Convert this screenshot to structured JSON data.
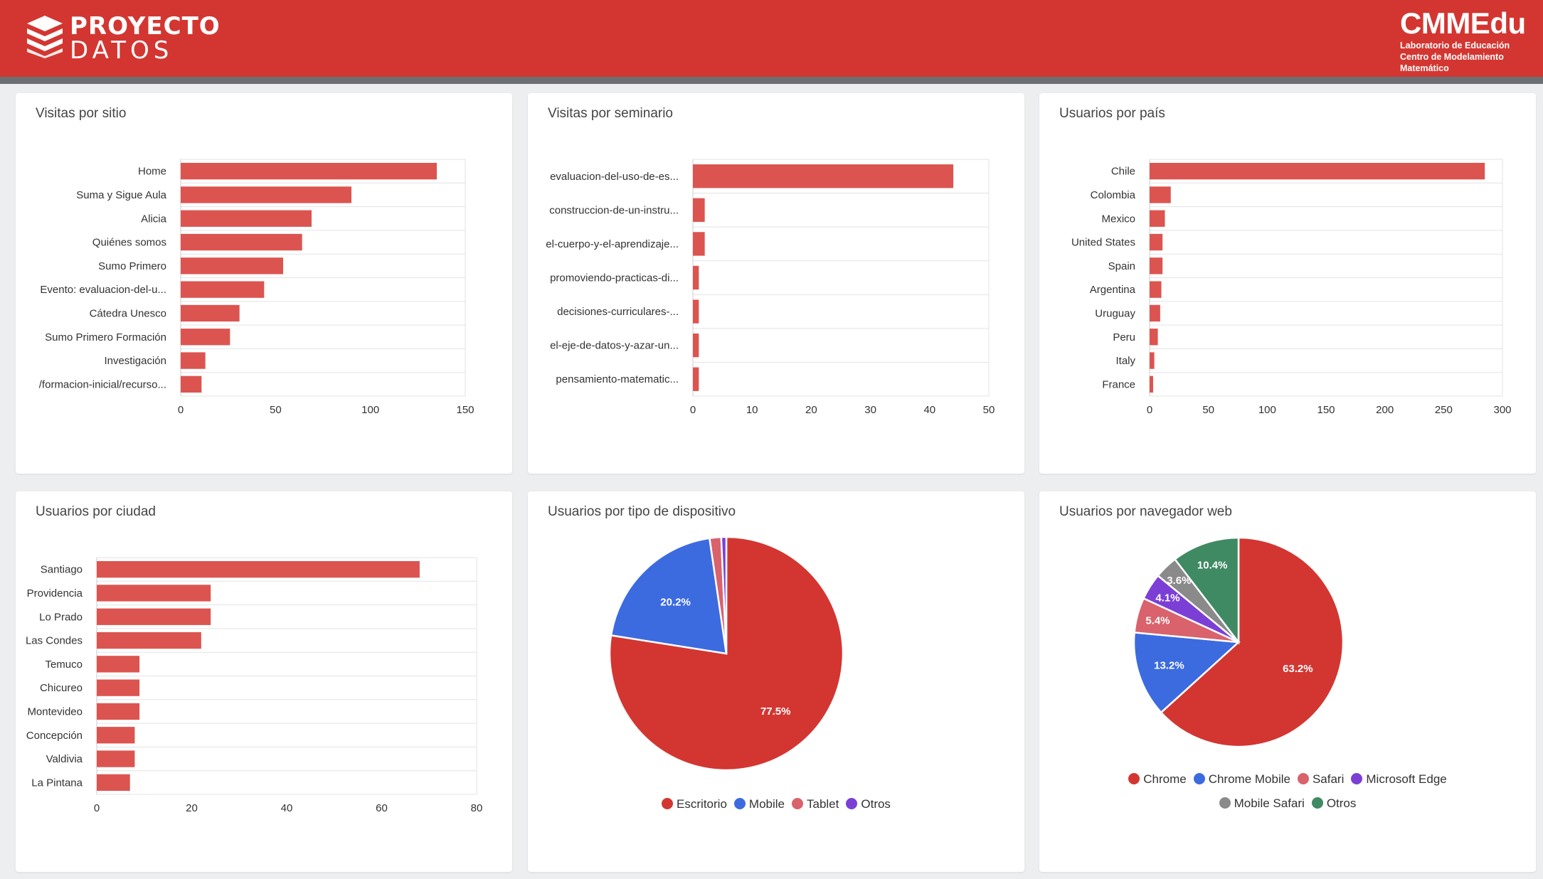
{
  "header": {
    "logo_line1": "PROYECTO",
    "logo_line2": "DATOS",
    "brand": "CMMEdu",
    "brand_sub": [
      "Laboratorio de Educación",
      "Centro de Modelamiento",
      "Matemático"
    ]
  },
  "colors": {
    "bar": "#dc5450",
    "header": "#d33631",
    "chrome": "#d33631",
    "blue": "#3c6be0",
    "pink": "#d9626c",
    "purple": "#7c3fd6",
    "gray": "#8a8a8a",
    "green": "#3f8a62"
  },
  "chart_data": [
    {
      "type": "bar",
      "orientation": "horizontal",
      "title": "Visitas por sitio",
      "categories": [
        "Home",
        "Suma y Sigue Aula",
        "Alicia",
        "Quiénes somos",
        "Sumo Primero",
        "Evento: evaluacion-del-u...",
        "Cátedra Unesco",
        "Sumo Primero Formación",
        "Investigación",
        "/formacion-inicial/recurso..."
      ],
      "values": [
        135,
        90,
        69,
        64,
        54,
        44,
        31,
        26,
        13,
        11
      ],
      "xlim": [
        0,
        150
      ],
      "xticks": [
        0,
        50,
        100,
        150
      ]
    },
    {
      "type": "bar",
      "orientation": "horizontal",
      "title": "Visitas por seminario",
      "categories": [
        "evaluacion-del-uso-de-es...",
        "construccion-de-un-instru...",
        "el-cuerpo-y-el-aprendizaje...",
        "promoviendo-practicas-di...",
        "decisiones-curriculares-...",
        "el-eje-de-datos-y-azar-un...",
        "pensamiento-matematic..."
      ],
      "values": [
        44,
        2,
        2,
        1,
        1,
        1,
        1
      ],
      "xlim": [
        0,
        50
      ],
      "xticks": [
        0,
        10,
        20,
        30,
        40,
        50
      ]
    },
    {
      "type": "bar",
      "orientation": "horizontal",
      "title": "Usuarios por país",
      "categories": [
        "Chile",
        "Colombia",
        "Mexico",
        "United States",
        "Spain",
        "Argentina",
        "Uruguay",
        "Peru",
        "Italy",
        "France"
      ],
      "values": [
        285,
        18,
        13,
        11,
        11,
        10,
        9,
        7,
        4,
        3
      ],
      "xlim": [
        0,
        300
      ],
      "xticks": [
        0,
        50,
        100,
        150,
        200,
        250,
        300
      ]
    },
    {
      "type": "bar",
      "orientation": "horizontal",
      "title": "Usuarios por ciudad",
      "categories": [
        "Santiago",
        "Providencia",
        "Lo Prado",
        "Las Condes",
        "Temuco",
        "Chicureo",
        "Montevideo",
        "Concepción",
        "Valdivia",
        "La Pintana"
      ],
      "values": [
        68,
        24,
        24,
        22,
        9,
        9,
        9,
        8,
        8,
        7
      ],
      "xlim": [
        0,
        80
      ],
      "xticks": [
        0,
        20,
        40,
        60,
        80
      ]
    },
    {
      "type": "pie",
      "title": "Usuarios por tipo de dispositivo",
      "labels": [
        "Escritorio",
        "Mobile",
        "Tablet",
        "Otros"
      ],
      "values": [
        77.5,
        20.2,
        1.6,
        0.7
      ],
      "value_labels": [
        "77.5%",
        "20.2%",
        "",
        ""
      ],
      "colors": [
        "#d33631",
        "#3c6be0",
        "#d9626c",
        "#7c3fd6"
      ],
      "legend": "bottom"
    },
    {
      "type": "pie",
      "title": "Usuarios por navegador web",
      "labels": [
        "Chrome",
        "Chrome Mobile",
        "Safari",
        "Microsoft Edge",
        "Mobile Safari",
        "Otros"
      ],
      "values": [
        63.2,
        13.2,
        5.4,
        4.1,
        3.6,
        10.4
      ],
      "value_labels": [
        "63.2%",
        "13.2%",
        "5.4%",
        "4.1%",
        "3.6%",
        "10.4%"
      ],
      "colors": [
        "#d33631",
        "#3c6be0",
        "#d9626c",
        "#7c3fd6",
        "#8a8a8a",
        "#3f8a62"
      ],
      "legend": "bottom"
    }
  ]
}
